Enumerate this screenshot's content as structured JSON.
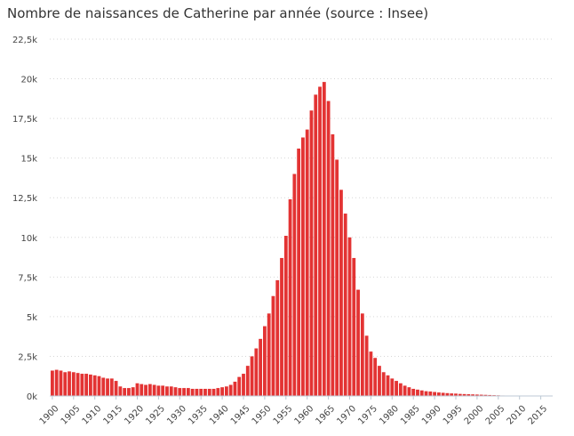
{
  "chart_data": {
    "type": "bar",
    "title": "Nombre de naissances de Catherine par année (source : Insee)",
    "xlabel": "",
    "ylabel": "",
    "x_start": 1900,
    "x_end": 2017,
    "ylim": [
      0,
      22500
    ],
    "yticks": [
      0,
      2500,
      5000,
      7500,
      10000,
      12500,
      15000,
      17500,
      20000,
      22500
    ],
    "ytick_labels": [
      "0k",
      "2,5k",
      "5k",
      "7,5k",
      "10k",
      "12,5k",
      "15k",
      "17,5k",
      "20k",
      "22,5k"
    ],
    "xtick_labels": [
      "1900",
      "1905",
      "1910",
      "1915",
      "1920",
      "1925",
      "1930",
      "1935",
      "1940",
      "1945",
      "1950",
      "1955",
      "1960",
      "1965",
      "1970",
      "1975",
      "1980",
      "1985",
      "1990",
      "1995",
      "2000",
      "2005",
      "2010",
      "2015"
    ],
    "grid": "horizontal-dotted",
    "bar_color": "#e33333",
    "values": [
      1600,
      1650,
      1600,
      1500,
      1550,
      1500,
      1450,
      1400,
      1400,
      1350,
      1300,
      1250,
      1150,
      1100,
      1100,
      950,
      600,
      500,
      500,
      550,
      800,
      750,
      700,
      750,
      700,
      650,
      650,
      600,
      600,
      550,
      500,
      500,
      500,
      450,
      450,
      450,
      450,
      450,
      450,
      500,
      550,
      600,
      700,
      900,
      1200,
      1400,
      1900,
      2500,
      3000,
      3600,
      4400,
      5200,
      6300,
      7300,
      8700,
      10100,
      12400,
      14000,
      15600,
      16300,
      16800,
      18000,
      19000,
      19500,
      19800,
      18600,
      16500,
      14900,
      13000,
      11500,
      10000,
      8700,
      6700,
      5200,
      3800,
      2800,
      2400,
      1900,
      1500,
      1300,
      1100,
      950,
      800,
      650,
      550,
      450,
      400,
      350,
      300,
      280,
      250,
      220,
      200,
      180,
      160,
      150,
      130,
      120,
      110,
      100,
      90,
      80,
      70,
      60,
      50,
      40,
      30,
      25,
      20,
      15,
      10,
      10,
      10,
      10,
      10,
      10,
      10,
      10
    ]
  }
}
